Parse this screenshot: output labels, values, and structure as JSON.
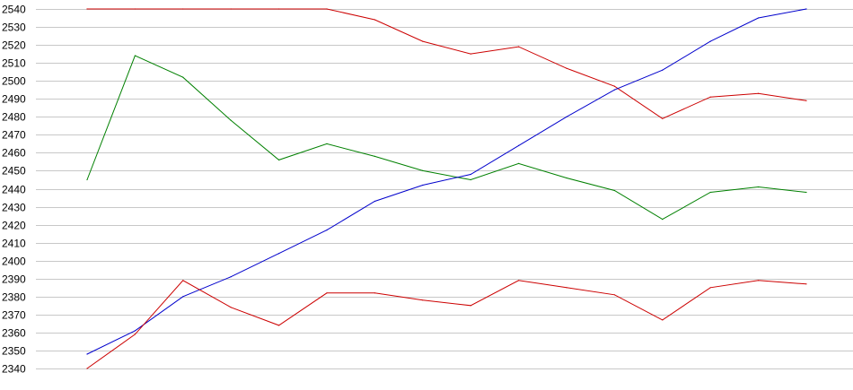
{
  "chart_data": {
    "type": "line",
    "title": "",
    "xlabel": "",
    "ylabel": "",
    "ylim": [
      2340,
      2540
    ],
    "y_ticks": [
      2540,
      2530,
      2520,
      2510,
      2500,
      2490,
      2480,
      2470,
      2460,
      2450,
      2440,
      2430,
      2420,
      2410,
      2400,
      2390,
      2380,
      2370,
      2360,
      2350,
      2340
    ],
    "x": [
      1,
      2,
      3,
      4,
      5,
      6,
      7,
      8,
      9,
      10,
      11,
      12,
      13,
      14,
      15,
      16
    ],
    "grid": true,
    "legend": "none",
    "series": [
      {
        "color": "#cc0000",
        "values": [
          2540,
          2540,
          2540,
          2540,
          2540,
          2540,
          2534,
          2522,
          2515,
          2519,
          2507,
          2497,
          2479,
          2491,
          2493,
          2489
        ]
      },
      {
        "color": "#008000",
        "values": [
          2445,
          2514,
          2502,
          2478,
          2456,
          2465,
          2458,
          2450,
          2445,
          2454,
          2446,
          2439,
          2423,
          2438,
          2441,
          2438
        ]
      },
      {
        "color": "#0000cc",
        "values": [
          2348,
          2361,
          2380,
          2391,
          2404,
          2417,
          2433,
          2442,
          2448,
          2464,
          2480,
          2495,
          2506,
          2522,
          2535,
          2540
        ]
      },
      {
        "color": "#cc0000",
        "values": [
          2340,
          2359,
          2389,
          2374,
          2364,
          2382,
          2382,
          2378,
          2375,
          2389,
          2385,
          2381,
          2367,
          2385,
          2389,
          2387
        ]
      }
    ]
  }
}
